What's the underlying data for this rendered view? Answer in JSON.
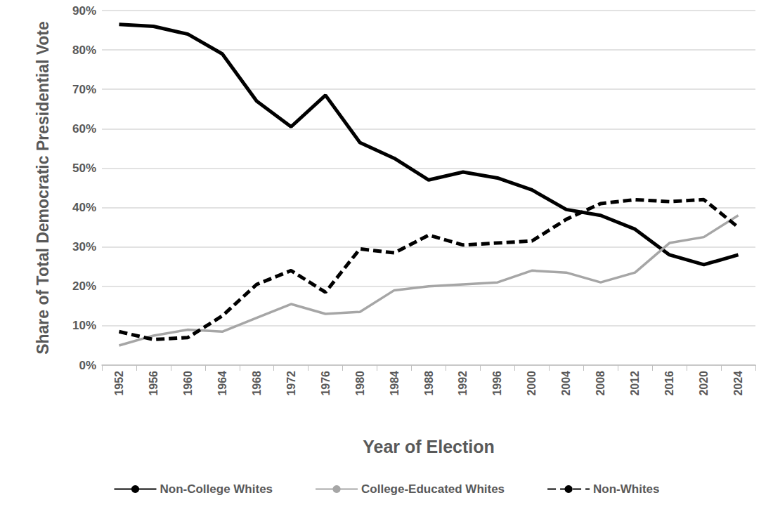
{
  "chart_data": {
    "type": "line",
    "x_label": "Year of Election",
    "y_label": "Share of Total Democratic Presidential Vote",
    "categories": [
      "1952",
      "1956",
      "1960",
      "1964",
      "1968",
      "1972",
      "1976",
      "1980",
      "1984",
      "1988",
      "1992",
      "1996",
      "2000",
      "2004",
      "2008",
      "2012",
      "2016",
      "2020",
      "2024"
    ],
    "series": [
      {
        "name": "Non-College Whites",
        "color": "#000000",
        "line_style": "solid",
        "values": [
          86.5,
          86,
          84,
          79,
          67,
          60.5,
          68.5,
          56.5,
          52.5,
          47,
          49,
          47.5,
          44.5,
          39.5,
          38,
          34.5,
          28,
          25.5,
          28
        ]
      },
      {
        "name": "College-Educated Whites",
        "color": "#a6a6a6",
        "line_style": "solid",
        "values": [
          5,
          7.5,
          9,
          8.5,
          12,
          15.5,
          13,
          13.5,
          19,
          20,
          20.5,
          21,
          24,
          23.5,
          21,
          23.5,
          31,
          32.5,
          38
        ]
      },
      {
        "name": "Non-Whites",
        "color": "#000000",
        "line_style": "dashed",
        "values": [
          8.5,
          6.5,
          7,
          12.5,
          20.5,
          24,
          18.5,
          29.5,
          28.5,
          33,
          30.5,
          31,
          31.5,
          37,
          41,
          42,
          41.5,
          42,
          35
        ]
      }
    ],
    "ylim": [
      0,
      90
    ],
    "yticks": [
      {
        "value": 0,
        "label": "0%"
      },
      {
        "value": 10,
        "label": "10%"
      },
      {
        "value": 20,
        "label": "20%"
      },
      {
        "value": 30,
        "label": "30%"
      },
      {
        "value": 40,
        "label": "40%"
      },
      {
        "value": 50,
        "label": "50%"
      },
      {
        "value": 60,
        "label": "60%"
      },
      {
        "value": 70,
        "label": "70%"
      },
      {
        "value": 80,
        "label": "80%"
      },
      {
        "value": 90,
        "label": "90%"
      }
    ],
    "grid": true,
    "legend": "bottom"
  }
}
